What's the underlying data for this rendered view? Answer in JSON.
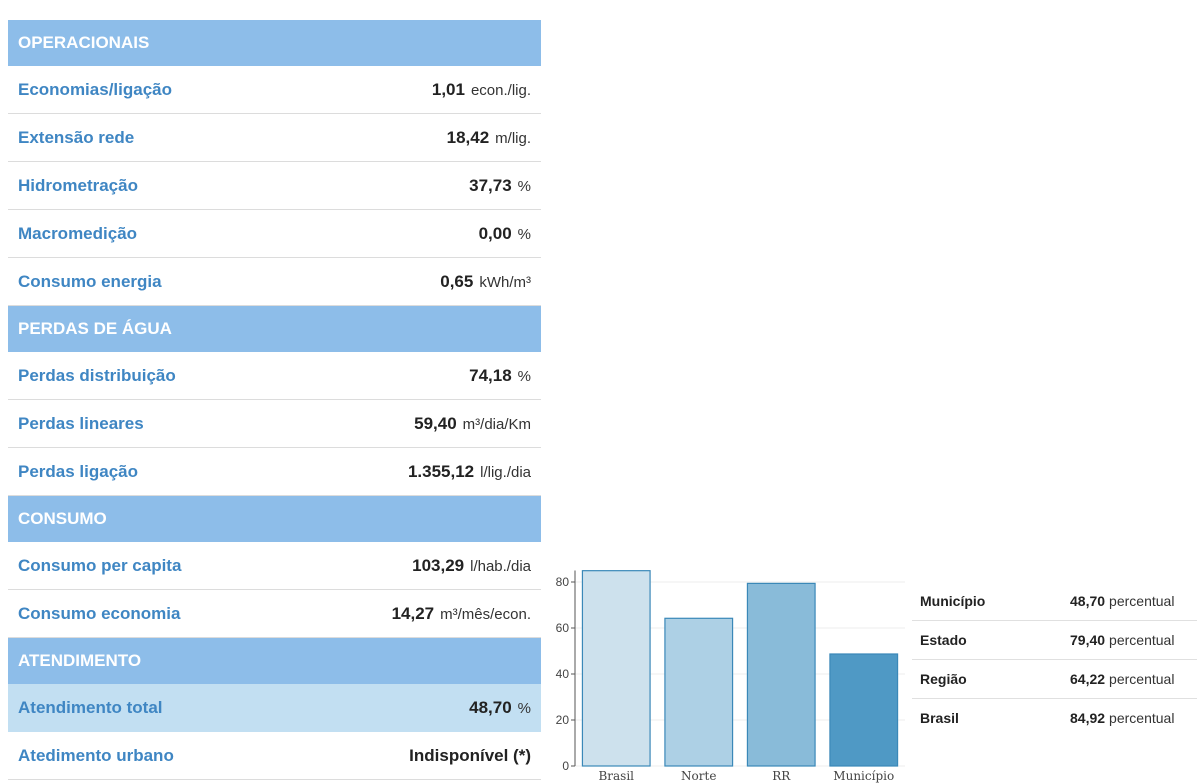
{
  "table": {
    "sections": [
      {
        "title": "OPERACIONAIS",
        "rows": [
          {
            "label": "Economias/ligação",
            "value": "1,01",
            "unit": "econ./lig."
          },
          {
            "label": "Extensão rede",
            "value": "18,42",
            "unit": "m/lig."
          },
          {
            "label": "Hidrometração",
            "value": "37,73",
            "unit": "%"
          },
          {
            "label": "Macromedição",
            "value": "0,00",
            "unit": "%"
          },
          {
            "label": "Consumo energia",
            "value": "0,65",
            "unit": "kWh/m³"
          }
        ]
      },
      {
        "title": "PERDAS DE ÁGUA",
        "rows": [
          {
            "label": "Perdas distribuição",
            "value": "74,18",
            "unit": "%"
          },
          {
            "label": "Perdas lineares",
            "value": "59,40",
            "unit": "m³/dia/Km"
          },
          {
            "label": "Perdas ligação",
            "value": "1.355,12",
            "unit": "l/lig./dia"
          }
        ]
      },
      {
        "title": "CONSUMO",
        "rows": [
          {
            "label": "Consumo per capita",
            "value": "103,29",
            "unit": "l/hab./dia"
          },
          {
            "label": "Consumo economia",
            "value": "14,27",
            "unit": "m³/mês/econ."
          }
        ]
      },
      {
        "title": "ATENDIMENTO",
        "rows": [
          {
            "label": "Atendimento total",
            "value": "48,70",
            "unit": "%",
            "selected": true
          },
          {
            "label": "Atedimento urbano",
            "value": "Indisponível (*)"
          }
        ]
      }
    ]
  },
  "chart_data": {
    "type": "bar",
    "categories": [
      "Brasil",
      "Norte",
      "RR",
      "Município"
    ],
    "values": [
      84.92,
      64.22,
      79.4,
      48.7
    ],
    "colors": [
      "#cde1ed",
      "#add0e5",
      "#89bbd9",
      "#4f99c5"
    ],
    "ylim": [
      0,
      85
    ],
    "yticks": [
      0,
      20,
      40,
      60,
      80
    ],
    "grid": true
  },
  "summary": [
    {
      "label": "Município",
      "value": "48,70",
      "unit": "percentual"
    },
    {
      "label": "Estado",
      "value": "79,40",
      "unit": "percentual"
    },
    {
      "label": "Região",
      "value": "64,22",
      "unit": "percentual"
    },
    {
      "label": "Brasil",
      "value": "84,92",
      "unit": "percentual"
    }
  ]
}
